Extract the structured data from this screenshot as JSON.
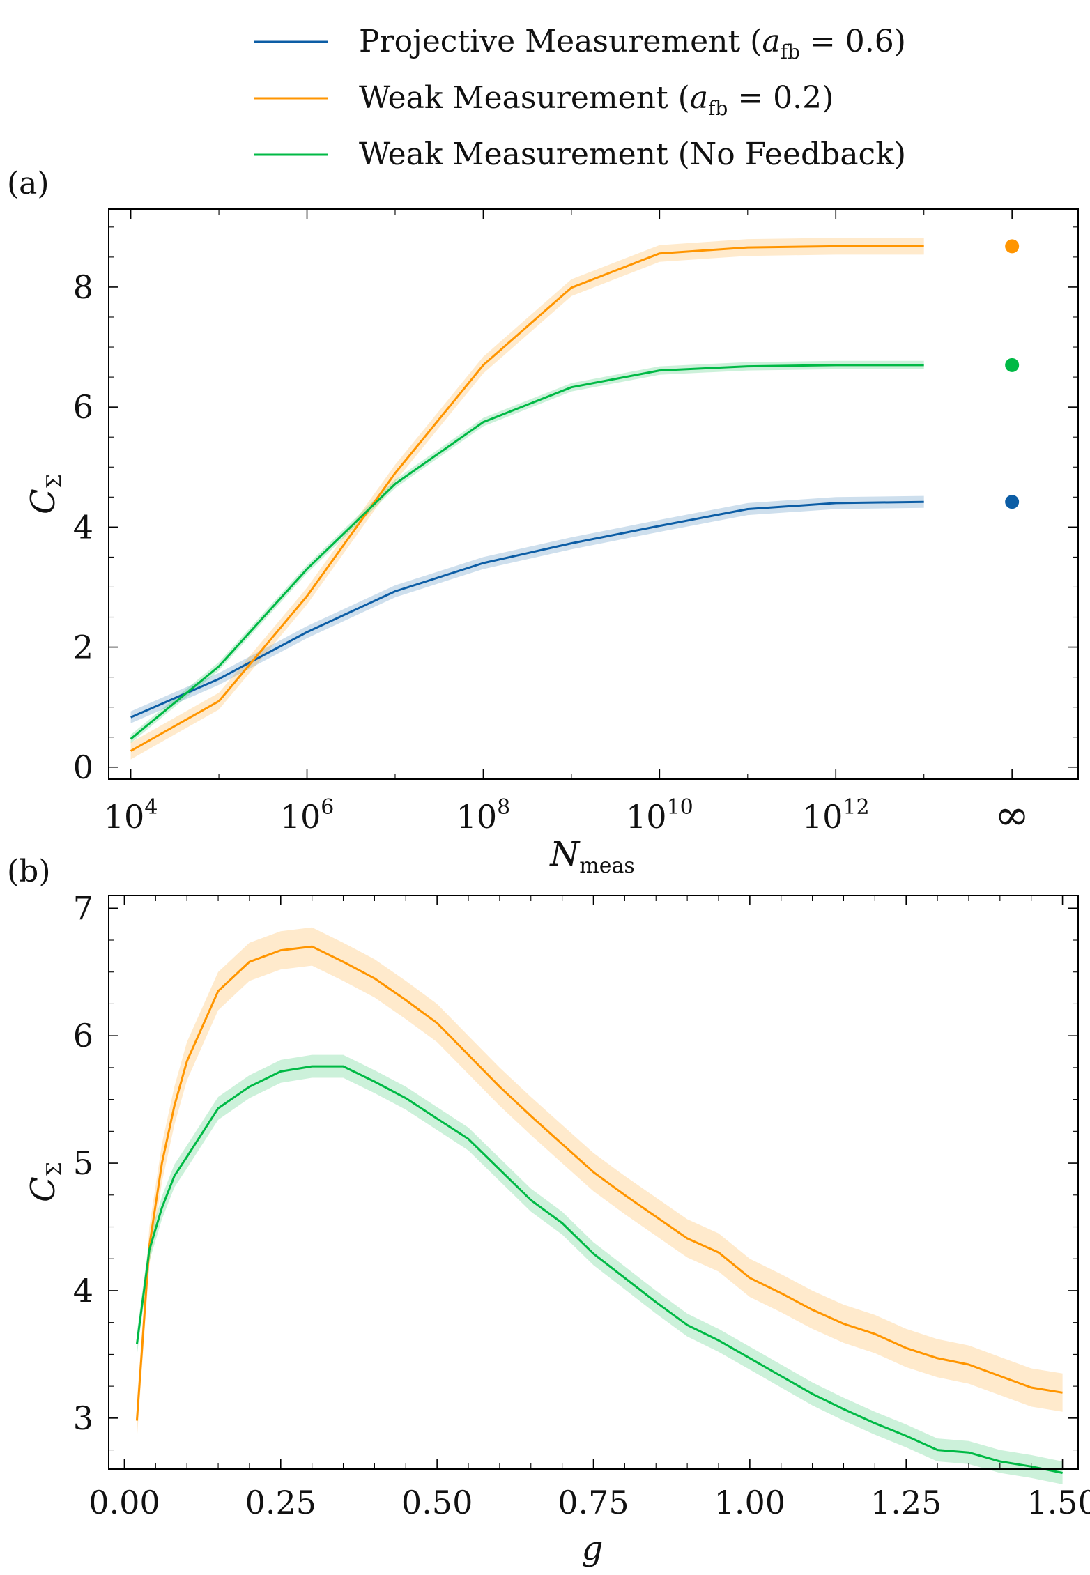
{
  "legend": [
    {
      "label": "Projective Measurement (a_fb = 0.6)",
      "color": "#0C5DA5"
    },
    {
      "label": "Weak Measurement (a_fb = 0.2)",
      "color": "#FF9500"
    },
    {
      "label": "Weak Measurement (No Feedback)",
      "color": "#00B945"
    }
  ],
  "chart_data": [
    {
      "panel": "(a)",
      "type": "line",
      "xscale": "log10",
      "xlabel": "N_meas",
      "ylabel": "C_Σ",
      "xlim_log10": [
        3.75,
        14.75
      ],
      "ylim": [
        -0.2,
        9.3
      ],
      "x_ticks_log10": [
        4,
        6,
        8,
        10,
        12
      ],
      "x_tick_labels": [
        "10^4",
        "10^6",
        "10^8",
        "10^10",
        "10^12"
      ],
      "infinity_label": "∞",
      "y_ticks": [
        0,
        2,
        4,
        6,
        8
      ],
      "x_log10": [
        4,
        5,
        6,
        7,
        8,
        9,
        10,
        11,
        12,
        13
      ],
      "series": [
        {
          "name": "Projective Measurement (a_fb = 0.6)",
          "color": "#0C5DA5",
          "values": [
            0.83,
            1.47,
            2.25,
            2.93,
            3.4,
            3.73,
            4.02,
            4.3,
            4.4,
            4.42
          ],
          "band": 0.1,
          "infinity_value": 4.42
        },
        {
          "name": "Weak Measurement (a_fb = 0.2)",
          "color": "#FF9500",
          "values": [
            0.27,
            1.1,
            2.85,
            4.9,
            6.7,
            7.99,
            8.56,
            8.66,
            8.68,
            8.68
          ],
          "band": 0.14,
          "infinity_value": 8.68
        },
        {
          "name": "Weak Measurement (No Feedback)",
          "color": "#00B945",
          "values": [
            0.47,
            1.68,
            3.3,
            4.72,
            5.75,
            6.33,
            6.61,
            6.68,
            6.7,
            6.7
          ],
          "band": 0.07,
          "infinity_value": 6.7
        }
      ]
    },
    {
      "panel": "(b)",
      "type": "line",
      "xlabel": "g",
      "ylabel": "C_Σ",
      "xlim": [
        -0.025,
        1.525
      ],
      "ylim": [
        2.6,
        7.1
      ],
      "x_ticks": [
        0.0,
        0.25,
        0.5,
        0.75,
        1.0,
        1.25,
        1.5
      ],
      "x_tick_labels": [
        "0.00",
        "0.25",
        "0.50",
        "0.75",
        "1.00",
        "1.25",
        "1.50"
      ],
      "y_ticks": [
        3,
        4,
        5,
        6,
        7
      ],
      "series": [
        {
          "name": "Weak Measurement (a_fb = 0.2)",
          "color": "#FF9500",
          "band": 0.15,
          "x": [
            0.02,
            0.04,
            0.06,
            0.08,
            0.1,
            0.15,
            0.2,
            0.25,
            0.3,
            0.35,
            0.4,
            0.45,
            0.5,
            0.55,
            0.6,
            0.65,
            0.7,
            0.75,
            0.8,
            0.85,
            0.9,
            0.95,
            1.0,
            1.05,
            1.1,
            1.15,
            1.2,
            1.25,
            1.3,
            1.35,
            1.4,
            1.45,
            1.5
          ],
          "values": [
            2.98,
            4.35,
            5.0,
            5.45,
            5.8,
            6.35,
            6.58,
            6.67,
            6.7,
            6.58,
            6.45,
            6.28,
            6.1,
            5.85,
            5.6,
            5.37,
            5.15,
            4.93,
            4.75,
            4.58,
            4.41,
            4.3,
            4.1,
            3.98,
            3.85,
            3.74,
            3.66,
            3.55,
            3.47,
            3.42,
            3.33,
            3.24,
            3.2
          ]
        },
        {
          "name": "Weak Measurement (No Feedback)",
          "color": "#00B945",
          "band": 0.09,
          "x": [
            0.02,
            0.04,
            0.06,
            0.08,
            0.1,
            0.15,
            0.2,
            0.25,
            0.3,
            0.35,
            0.4,
            0.45,
            0.5,
            0.55,
            0.6,
            0.65,
            0.7,
            0.75,
            0.8,
            0.85,
            0.9,
            0.95,
            1.0,
            1.05,
            1.1,
            1.15,
            1.2,
            1.25,
            1.3,
            1.35,
            1.4,
            1.45,
            1.5
          ],
          "values": [
            3.58,
            4.32,
            4.65,
            4.9,
            5.05,
            5.43,
            5.6,
            5.72,
            5.76,
            5.76,
            5.64,
            5.51,
            5.35,
            5.19,
            4.95,
            4.71,
            4.53,
            4.29,
            4.1,
            3.91,
            3.73,
            3.61,
            3.47,
            3.33,
            3.19,
            3.07,
            2.96,
            2.86,
            2.75,
            2.73,
            2.66,
            2.62,
            2.57
          ]
        }
      ]
    }
  ]
}
